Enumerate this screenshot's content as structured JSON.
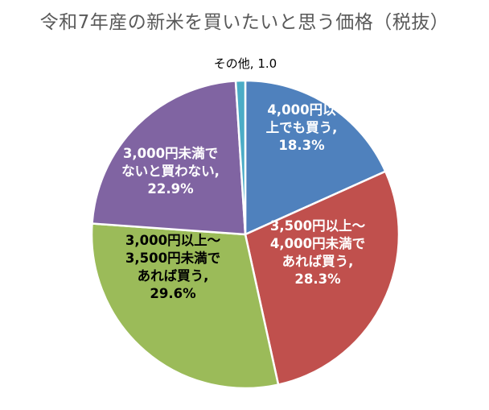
{
  "chart_data": {
    "type": "pie",
    "title": "令和7年産の新米を買いたいと思う価格（税抜）",
    "start_angle_deg": 0,
    "direction": "clockwise",
    "slices": [
      {
        "label": "4,000円以上でも買う",
        "value": 18.3,
        "color": "#4F81BD",
        "text_color": "#ffffff",
        "label_lines": [
          "4,000円以",
          "上でも買う,",
          "18.3%"
        ]
      },
      {
        "label": "3,500円以上～4,000円未満であれば買う",
        "value": 28.3,
        "color": "#C0504D",
        "text_color": "#ffffff",
        "label_lines": [
          "3,500円以上～",
          "4,000円未満で",
          "あれば買う,",
          "28.3%"
        ]
      },
      {
        "label": "3,000円以上～3,500円未満であれば買う",
        "value": 29.6,
        "color": "#9BBB59",
        "text_color": "#000000",
        "label_lines": [
          "3,000円以上～",
          "3,500円未満で",
          "あれば買う,",
          "29.6%"
        ]
      },
      {
        "label": "3,000円未満でないと買わない",
        "value": 22.9,
        "color": "#8064A2",
        "text_color": "#ffffff",
        "label_lines": [
          "3,000円未満で",
          "ないと買わない,",
          "22.9%"
        ]
      },
      {
        "label": "その他",
        "value": 1.0,
        "color": "#4BACC6",
        "text_color": "#000000",
        "label_lines": [
          "その他, 1.0"
        ],
        "label_outside": true
      }
    ]
  }
}
